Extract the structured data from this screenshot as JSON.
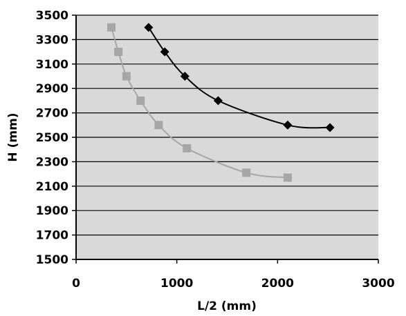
{
  "chart_data": {
    "type": "scatter",
    "title": "",
    "xlabel": "L/2 (mm)",
    "ylabel": "H (mm)",
    "xlim": [
      0,
      3000
    ],
    "ylim": [
      1500,
      3500
    ],
    "x_ticks": [
      "0",
      "1000",
      "2000",
      "3000"
    ],
    "y_ticks": [
      "1500",
      "1700",
      "1900",
      "2100",
      "2300",
      "2500",
      "2700",
      "2900",
      "3100",
      "3300",
      "3500"
    ],
    "grid": "horizontal",
    "legend": "none",
    "plot_background": "#d9d9d9",
    "series": [
      {
        "marker": "diamond",
        "color": "#000000",
        "points": [
          {
            "x": 720,
            "y": 3400
          },
          {
            "x": 880,
            "y": 3200
          },
          {
            "x": 1080,
            "y": 3000
          },
          {
            "x": 1410,
            "y": 2800
          },
          {
            "x": 2100,
            "y": 2600
          },
          {
            "x": 2520,
            "y": 2580
          }
        ]
      },
      {
        "marker": "square",
        "color": "#a6a6a6",
        "points": [
          {
            "x": 350,
            "y": 3400
          },
          {
            "x": 420,
            "y": 3200
          },
          {
            "x": 500,
            "y": 3000
          },
          {
            "x": 640,
            "y": 2800
          },
          {
            "x": 820,
            "y": 2600
          },
          {
            "x": 1100,
            "y": 2410
          },
          {
            "x": 1690,
            "y": 2210
          },
          {
            "x": 2100,
            "y": 2170
          }
        ]
      }
    ]
  }
}
